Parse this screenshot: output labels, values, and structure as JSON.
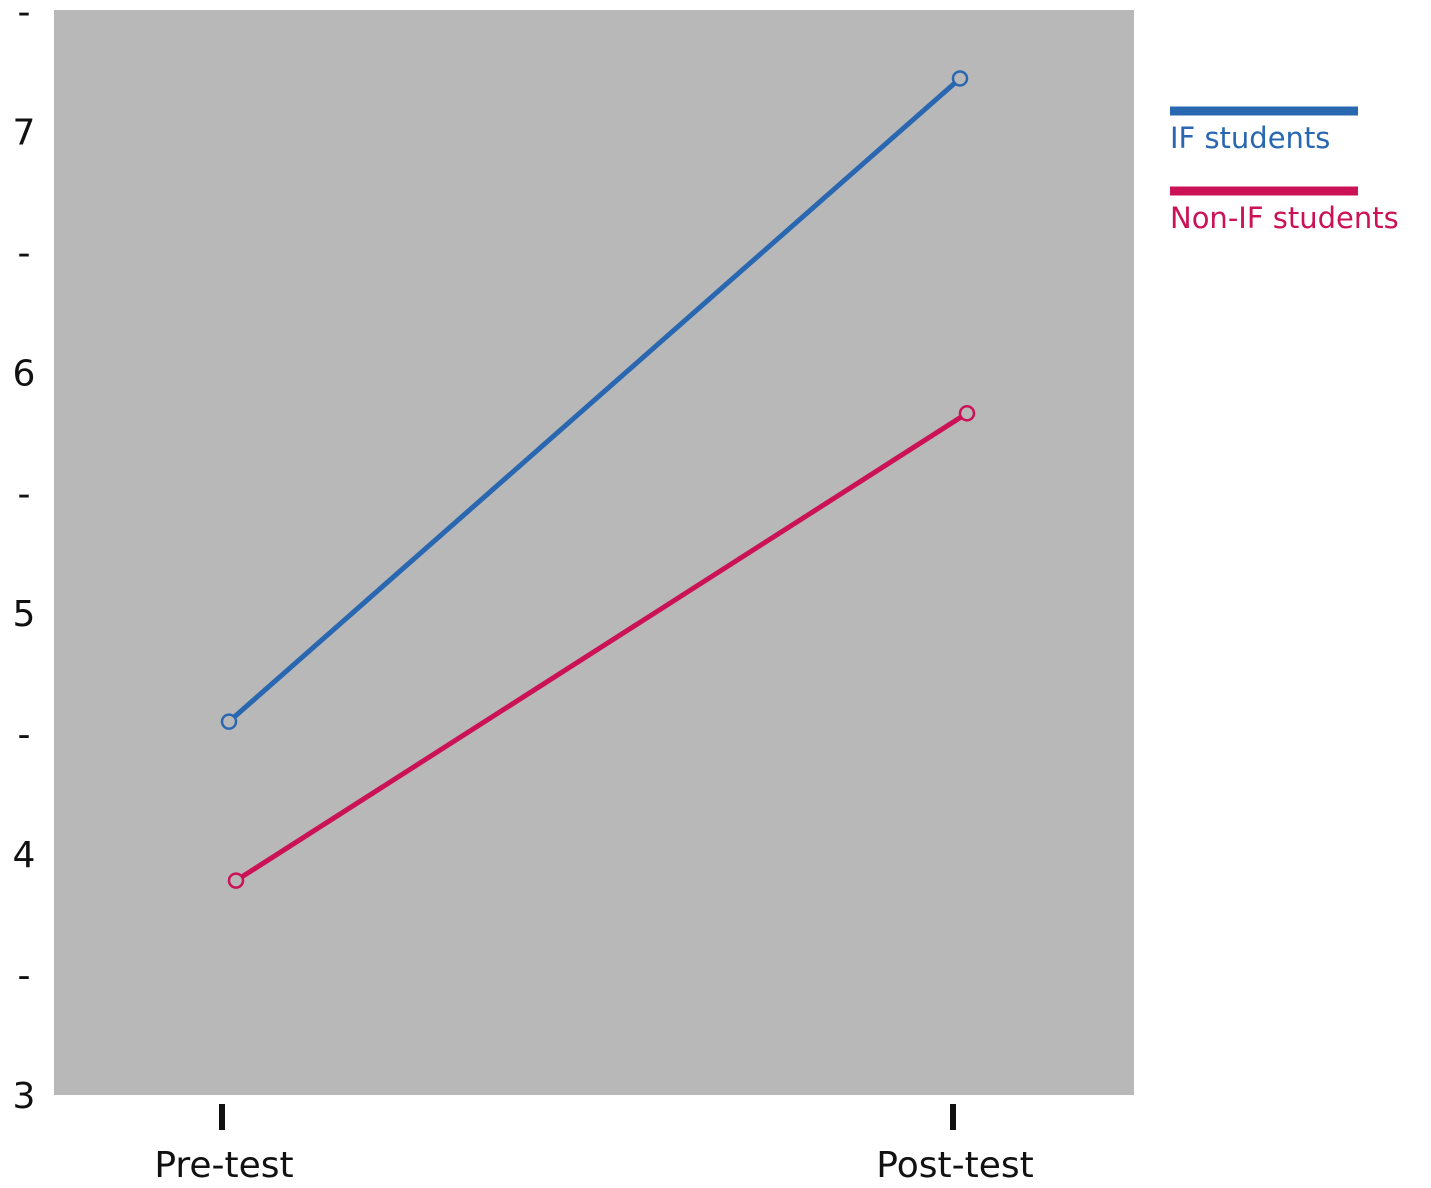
{
  "chart_data": {
    "type": "line",
    "categories": [
      "Pre-test",
      "Post-test"
    ],
    "series": [
      {
        "name": "IF students",
        "values": [
          4.55,
          7.22
        ],
        "color": "#2a67b1"
      },
      {
        "name": "Non-IF students",
        "values": [
          3.89,
          5.83
        ],
        "color": "#cc1256"
      }
    ],
    "ylim": [
      3,
      7.5
    ],
    "y_ticks": [
      {
        "value": 3,
        "label": "3"
      },
      {
        "value": 3.5,
        "label": "-"
      },
      {
        "value": 4,
        "label": "4"
      },
      {
        "value": 4.5,
        "label": "-"
      },
      {
        "value": 5,
        "label": "5"
      },
      {
        "value": 5.5,
        "label": "-"
      },
      {
        "value": 6,
        "label": "6"
      },
      {
        "value": 6.5,
        "label": "-"
      },
      {
        "value": 7,
        "label": "7"
      },
      {
        "value": 7.5,
        "label": "-"
      }
    ],
    "title": "",
    "xlabel": "",
    "ylabel": "",
    "grid": false,
    "legend_position": "right",
    "plot_background": "#b8b8b8"
  }
}
